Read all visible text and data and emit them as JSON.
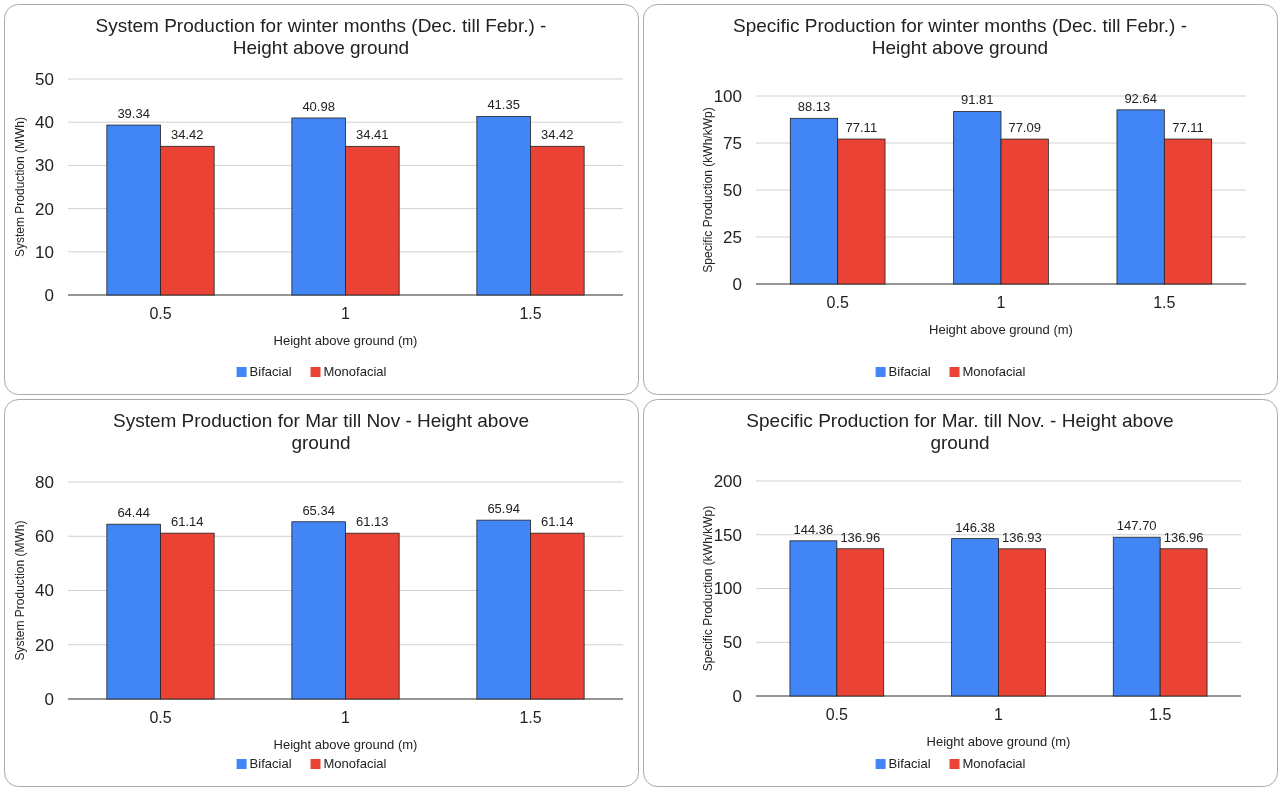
{
  "chart_data": [
    {
      "type": "bar",
      "title": "System Production for winter months (Dec. till Febr.) - Height above ground",
      "xlabel": "Height above ground (m)",
      "ylabel": "System Production (MWh)",
      "categories": [
        "0.5",
        "1",
        "1.5"
      ],
      "ylim": [
        0,
        50
      ],
      "yticks": [
        0,
        10,
        20,
        30,
        40,
        50
      ],
      "grid": "y",
      "legend": "bottom",
      "series": [
        {
          "name": "Bifacial",
          "color": "#4285f4",
          "values": [
            39.34,
            40.98,
            41.35
          ],
          "value_labels": [
            "39.34",
            "40.98",
            "41.35"
          ]
        },
        {
          "name": "Monofacial",
          "color": "#ea4335",
          "values": [
            34.42,
            34.41,
            34.42
          ],
          "value_labels": [
            "34.42",
            "34.41",
            "34.42"
          ]
        }
      ]
    },
    {
      "type": "bar",
      "title": "Specific Production for winter months (Dec. till Febr.) - Height above ground",
      "xlabel": "Height above ground (m)",
      "ylabel": "Specific Production (kWh/kWp)",
      "categories": [
        "0.5",
        "1",
        "1.5"
      ],
      "ylim": [
        0,
        100
      ],
      "yticks": [
        0,
        25,
        50,
        75,
        100
      ],
      "grid": "y",
      "legend": "bottom",
      "series": [
        {
          "name": "Bifacial",
          "color": "#4285f4",
          "values": [
            88.13,
            91.81,
            92.64
          ],
          "value_labels": [
            "88.13",
            "91.81",
            "92.64"
          ]
        },
        {
          "name": "Monofacial",
          "color": "#ea4335",
          "values": [
            77.11,
            77.09,
            77.11
          ],
          "value_labels": [
            "77.11",
            "77.09",
            "77.11"
          ]
        }
      ]
    },
    {
      "type": "bar",
      "title": "System Production for Mar till Nov - Height above ground",
      "xlabel": "Height above ground (m)",
      "ylabel": "System Production (MWh)",
      "categories": [
        "0.5",
        "1",
        "1.5"
      ],
      "ylim": [
        0,
        80
      ],
      "yticks": [
        0,
        20,
        40,
        60,
        80
      ],
      "grid": "y",
      "legend": "bottom",
      "series": [
        {
          "name": "Bifacial",
          "color": "#4285f4",
          "values": [
            64.44,
            65.34,
            65.94
          ],
          "value_labels": [
            "64.44",
            "65.34",
            "65.94"
          ]
        },
        {
          "name": "Monofacial",
          "color": "#ea4335",
          "values": [
            61.14,
            61.13,
            61.14
          ],
          "value_labels": [
            "61.14",
            "61.13",
            "61.14"
          ]
        }
      ]
    },
    {
      "type": "bar",
      "title": "Specific Production for Mar. till Nov. - Height above ground",
      "xlabel": "Height above ground (m)",
      "ylabel": "Specific Production (kWh/kWp)",
      "categories": [
        "0.5",
        "1",
        "1.5"
      ],
      "ylim": [
        0,
        200
      ],
      "yticks": [
        0,
        50,
        100,
        150,
        200
      ],
      "grid": "y",
      "legend": "bottom",
      "series": [
        {
          "name": "Bifacial",
          "color": "#4285f4",
          "values": [
            144.36,
            146.38,
            147.7
          ],
          "value_labels": [
            "144.36",
            "146.38",
            "147.70"
          ]
        },
        {
          "name": "Monofacial",
          "color": "#ea4335",
          "values": [
            136.96,
            136.93,
            136.96
          ],
          "value_labels": [
            "136.96",
            "136.93",
            "136.96"
          ]
        }
      ]
    }
  ]
}
